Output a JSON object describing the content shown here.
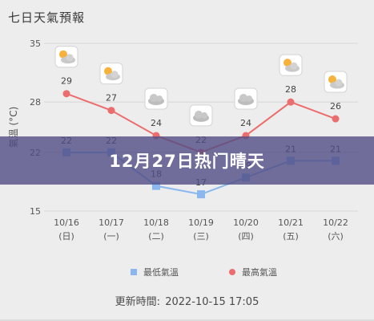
{
  "page": {
    "title": "七日天氣預報"
  },
  "banner": {
    "text": "12月27日热门晴天"
  },
  "legend": {
    "low": "最低氣溫",
    "high": "最高氣溫"
  },
  "updated": {
    "label": "更新時間:",
    "value": "2022-10-15 17:05"
  },
  "colors": {
    "low": "#8ab8ee",
    "high": "#ec6d6d",
    "grid": "#d6d6d6",
    "banner": "#504c84"
  },
  "chart_data": {
    "type": "line",
    "ylabel": "氣溫 (°C)",
    "ylim": [
      15,
      35
    ],
    "yticks": [
      15,
      22,
      28,
      35
    ],
    "grid": true,
    "categories": [
      [
        "10/16",
        "(日)"
      ],
      [
        "10/17",
        "(一)"
      ],
      [
        "10/18",
        "(二)"
      ],
      [
        "10/19",
        "(三)"
      ],
      [
        "10/20",
        "(四)"
      ],
      [
        "10/21",
        "(五)"
      ],
      [
        "10/22",
        "(六)"
      ]
    ],
    "icons": [
      "partly-cloudy-icon",
      "partly-cloudy-icon",
      "cloudy-icon",
      "cloudy-icon",
      "cloudy-icon",
      "partly-cloudy-icon",
      "partly-cloudy-icon"
    ],
    "series": [
      {
        "name": "最高氣溫",
        "values": [
          29,
          27,
          24,
          22,
          24,
          28,
          26
        ]
      },
      {
        "name": "最低氣溫",
        "values": [
          22,
          22,
          18,
          17,
          19,
          21,
          21
        ]
      }
    ]
  }
}
